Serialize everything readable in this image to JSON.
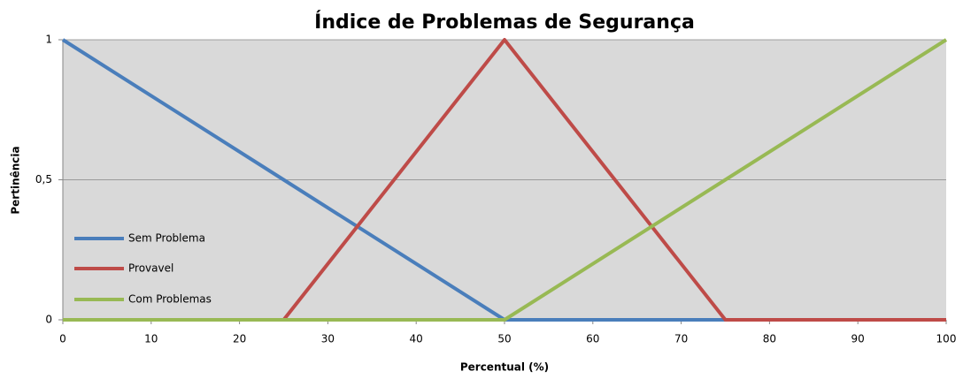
{
  "chart_data": {
    "type": "line",
    "title": "Índice de Problemas de Segurança",
    "x_label": "Percentual (%)",
    "y_label": "Pertinência",
    "x": [
      0,
      25,
      50,
      75,
      100
    ],
    "series": [
      {
        "name": "Sem Problema",
        "color": "#4a7ebb",
        "values": [
          1,
          0.5,
          0,
          0,
          0
        ]
      },
      {
        "name": "Provavel",
        "color": "#be4b48",
        "values": [
          0,
          0,
          1,
          0,
          0
        ]
      },
      {
        "name": "Com Problemas",
        "color": "#98b954",
        "values": [
          0,
          0,
          0,
          0.5,
          1
        ]
      }
    ],
    "xlim": [
      0,
      100
    ],
    "xticks": [
      0,
      10,
      20,
      30,
      40,
      50,
      60,
      70,
      80,
      90,
      100
    ],
    "ylim": [
      0,
      1
    ],
    "yticks": [
      0,
      {
        "value": 0.5,
        "label": "0,5"
      },
      1
    ],
    "grid": true,
    "legend": "left",
    "background": "#d9d9d9"
  }
}
